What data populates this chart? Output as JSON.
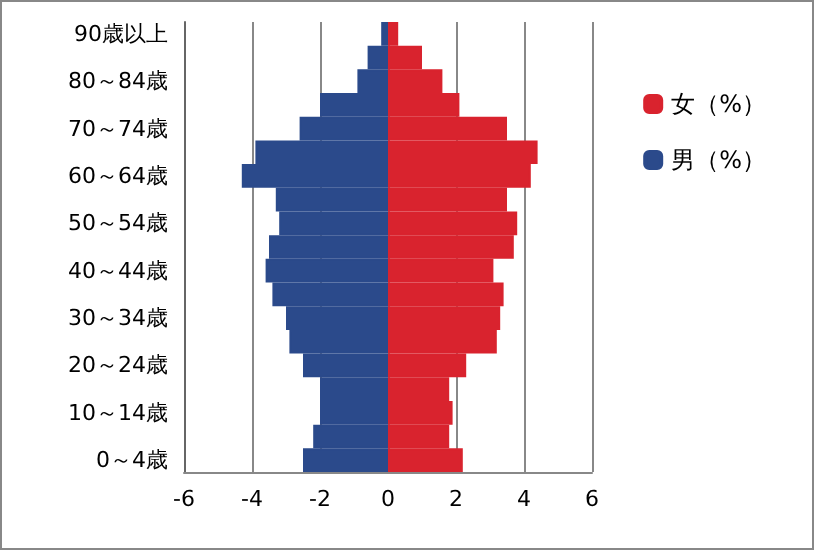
{
  "chart_data": {
    "type": "bar",
    "orientation": "horizontal",
    "stacked": true,
    "categories": [
      "90歳以上",
      null,
      "80～84歳",
      null,
      "70～74歳",
      null,
      "60～64歳",
      null,
      "50～54歳",
      null,
      "40～44歳",
      null,
      "30～34歳",
      null,
      "20～24歳",
      null,
      "10～14歳",
      null,
      "0～4歳"
    ],
    "series": [
      {
        "name": "女（%）",
        "color": "#d9232e",
        "values": [
          0.3,
          1.0,
          1.6,
          2.1,
          3.5,
          4.4,
          4.2,
          3.5,
          3.8,
          3.7,
          3.1,
          3.4,
          3.3,
          3.2,
          2.3,
          1.8,
          1.9,
          1.8,
          2.2
        ]
      },
      {
        "name": "男（%）",
        "color": "#2b4a8b",
        "values": [
          -0.2,
          -0.6,
          -0.9,
          -2.0,
          -2.6,
          -3.9,
          -4.3,
          -3.3,
          -3.2,
          -3.5,
          -3.6,
          -3.4,
          -3.0,
          -2.9,
          -2.5,
          -2.0,
          -2.0,
          -2.2,
          -2.5
        ]
      }
    ],
    "xlim": [
      -6,
      6
    ],
    "xticks": [
      -6,
      -4,
      -2,
      0,
      2,
      4,
      6
    ],
    "grid": "x",
    "legend": "right"
  }
}
